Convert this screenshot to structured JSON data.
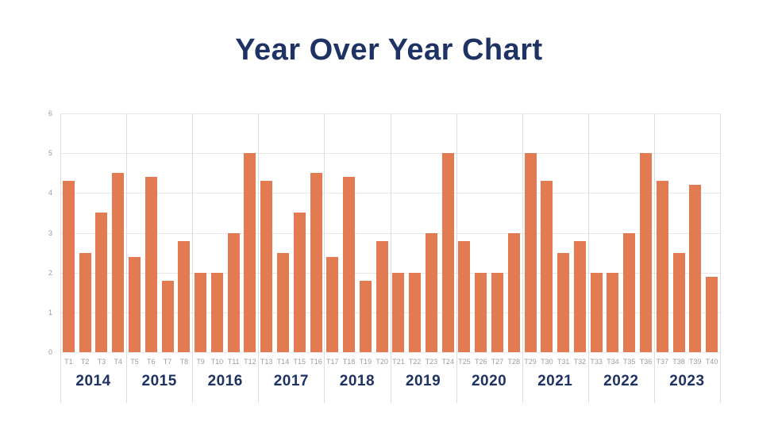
{
  "title": "Year Over Year Chart",
  "colors": {
    "bar": "#E27A52",
    "heading": "#1E3363",
    "axis_text": "#9C9C9C",
    "gridline": "#E8E8E8",
    "separator": "#DDDDDD",
    "background": "#FFFFFF"
  },
  "chart_data": {
    "type": "bar",
    "title": "Year Over Year Chart",
    "xlabel": "",
    "ylabel": "",
    "ylim": [
      0,
      6
    ],
    "yticks": [
      0,
      1,
      2,
      3,
      4,
      5,
      6
    ],
    "grid": true,
    "legend_position": "none",
    "categories": [
      "T1",
      "T2",
      "T3",
      "T4",
      "T5",
      "T6",
      "T7",
      "T8",
      "T9",
      "T10",
      "T11",
      "T12",
      "T13",
      "T14",
      "T15",
      "T16",
      "T17",
      "T18",
      "T19",
      "T20",
      "T21",
      "T22",
      "T23",
      "T24",
      "T25",
      "T26",
      "T27",
      "T28",
      "T29",
      "T30",
      "T31",
      "T32",
      "T33",
      "T34",
      "T35",
      "T36",
      "T37",
      "T38",
      "T39",
      "T40"
    ],
    "values": [
      4.3,
      2.5,
      3.5,
      4.5,
      2.4,
      4.4,
      1.8,
      2.8,
      2.0,
      2.0,
      3.0,
      5.0,
      4.3,
      2.5,
      3.5,
      4.5,
      2.4,
      4.4,
      1.8,
      2.8,
      2.0,
      2.0,
      3.0,
      5.0,
      2.8,
      2.0,
      2.0,
      3.0,
      5.0,
      4.3,
      2.5,
      2.8,
      2.0,
      2.0,
      3.0,
      5.0,
      4.3,
      2.5,
      4.2,
      1.9
    ],
    "year_groups": [
      {
        "year": "2014",
        "labels": [
          "T1",
          "T2",
          "T3",
          "T4"
        ],
        "values": [
          4.3,
          2.5,
          3.5,
          4.5
        ]
      },
      {
        "year": "2015",
        "labels": [
          "T5",
          "T6",
          "T7",
          "T8"
        ],
        "values": [
          2.4,
          4.4,
          1.8,
          2.8
        ]
      },
      {
        "year": "2016",
        "labels": [
          "T9",
          "T10",
          "T11",
          "T12"
        ],
        "values": [
          2.0,
          2.0,
          3.0,
          5.0
        ]
      },
      {
        "year": "2017",
        "labels": [
          "T13",
          "T14",
          "T15",
          "T16"
        ],
        "values": [
          4.3,
          2.5,
          3.5,
          4.5
        ]
      },
      {
        "year": "2018",
        "labels": [
          "T17",
          "T18",
          "T19",
          "T20"
        ],
        "values": [
          2.4,
          4.4,
          1.8,
          2.8
        ]
      },
      {
        "year": "2019",
        "labels": [
          "T21",
          "T22",
          "T23",
          "T24"
        ],
        "values": [
          2.0,
          2.0,
          3.0,
          5.0
        ]
      },
      {
        "year": "2020",
        "labels": [
          "T25",
          "T26",
          "T27",
          "T28"
        ],
        "values": [
          2.8,
          2.0,
          2.0,
          3.0
        ]
      },
      {
        "year": "2021",
        "labels": [
          "T29",
          "T30",
          "T31",
          "T32"
        ],
        "values": [
          5.0,
          4.3,
          2.5,
          2.8
        ]
      },
      {
        "year": "2022",
        "labels": [
          "T33",
          "T34",
          "T35",
          "T36"
        ],
        "values": [
          2.0,
          2.0,
          3.0,
          5.0
        ]
      },
      {
        "year": "2023",
        "labels": [
          "T37",
          "T38",
          "T39",
          "T40"
        ],
        "values": [
          4.3,
          2.5,
          4.2,
          1.9
        ]
      }
    ]
  }
}
